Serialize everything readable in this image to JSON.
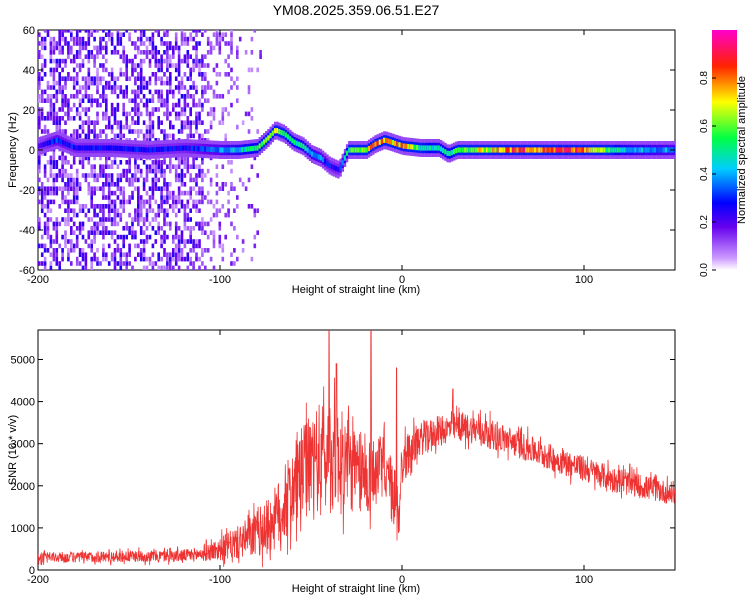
{
  "title": "YM08.2025.359.06.51.E27",
  "chart_data": [
    {
      "type": "heatmap",
      "title": "YM08.2025.359.06.51.E27",
      "xlabel": "Height of straight line (km)",
      "ylabel": "Frequency (Hz)",
      "xlim": [
        -200,
        150
      ],
      "ylim": [
        -60,
        60
      ],
      "xticks": [
        -200,
        -100,
        0,
        100
      ],
      "yticks": [
        -60,
        -40,
        -20,
        0,
        20,
        40,
        60
      ],
      "colorbar": {
        "label": "Normalized spectral amplitude",
        "range": [
          0,
          1
        ],
        "ticks": [
          0.0,
          0.2,
          0.4,
          0.6,
          0.8
        ],
        "colors": [
          "#e0ccff",
          "#7000d8",
          "#0000ff",
          "#00ffff",
          "#00ff00",
          "#ffff00",
          "#ff0000",
          "#ff00ff"
        ]
      },
      "ridge": {
        "x": [
          -200,
          -190,
          -180,
          -160,
          -140,
          -120,
          -100,
          -90,
          -80,
          -74,
          -70,
          -65,
          -60,
          -55,
          -50,
          -45,
          -40,
          -35,
          -30,
          -20,
          -15,
          -10,
          0,
          10,
          20,
          25,
          30,
          40,
          60,
          80,
          100,
          120,
          150
        ],
        "freq": [
          2,
          5,
          1,
          1,
          0,
          1,
          0,
          0,
          1,
          6,
          10,
          8,
          4,
          2,
          -2,
          -4,
          -8,
          -10,
          0,
          0,
          3,
          5,
          2,
          1,
          1,
          -2,
          0,
          0,
          0,
          0,
          0,
          0,
          0
        ],
        "amplitude": [
          0.25,
          0.35,
          0.3,
          0.3,
          0.3,
          0.3,
          0.4,
          0.5,
          0.55,
          0.7,
          0.75,
          0.6,
          0.55,
          0.5,
          0.45,
          0.4,
          0.3,
          0.3,
          0.6,
          0.7,
          0.9,
          0.85,
          0.8,
          0.6,
          0.5,
          0.55,
          0.6,
          0.7,
          0.9,
          0.95,
          0.9,
          0.5,
          0.4
        ]
      },
      "scatter_region": {
        "x_range": [
          -200,
          -75
        ],
        "freq_range": [
          -60,
          60
        ],
        "dense_until": -110,
        "amplitude": [
          0.05,
          0.25
        ]
      }
    },
    {
      "type": "line",
      "xlabel": "Height of straight line (km)",
      "ylabel": "SNR (10 * v/v)",
      "xlim": [
        -200,
        150
      ],
      "ylim": [
        0,
        5700
      ],
      "xticks": [
        -200,
        -100,
        0,
        100
      ],
      "yticks": [
        0,
        1000,
        2000,
        3000,
        4000,
        5000
      ],
      "color": "#ee3333",
      "series": [
        {
          "name": "SNR",
          "envelope_x": [
            -200,
            -180,
            -160,
            -140,
            -120,
            -110,
            -100,
            -90,
            -80,
            -75,
            -70,
            -65,
            -60,
            -55,
            -50,
            -45,
            -40,
            -35,
            -30,
            -25,
            -20,
            -15,
            -10,
            -5,
            -2,
            0,
            5,
            10,
            20,
            30,
            40,
            50,
            60,
            80,
            100,
            120,
            140,
            150
          ],
          "envelope_mean": [
            300,
            300,
            320,
            330,
            340,
            380,
            500,
            650,
            850,
            1000,
            1200,
            1500,
            1900,
            2300,
            2500,
            2700,
            2600,
            2700,
            2500,
            2300,
            2200,
            2300,
            2500,
            1800,
            1300,
            2500,
            2900,
            3100,
            3300,
            3400,
            3350,
            3200,
            3050,
            2700,
            2400,
            2100,
            1900,
            1800
          ],
          "envelope_noise": [
            120,
            130,
            140,
            140,
            150,
            180,
            280,
            400,
            550,
            650,
            750,
            900,
            1000,
            1100,
            1200,
            1300,
            1300,
            1200,
            1100,
            1000,
            900,
            900,
            700,
            800,
            900,
            600,
            450,
            400,
            350,
            350,
            350,
            350,
            330,
            320,
            310,
            300,
            280,
            280
          ],
          "notable_peaks": [
            {
              "x": -40,
              "y": 5700
            },
            {
              "x": -17,
              "y": 5700
            },
            {
              "x": -36,
              "y": 4900
            },
            {
              "x": -3,
              "y": 4800
            },
            {
              "x": 28,
              "y": 4300
            }
          ]
        }
      ]
    }
  ]
}
